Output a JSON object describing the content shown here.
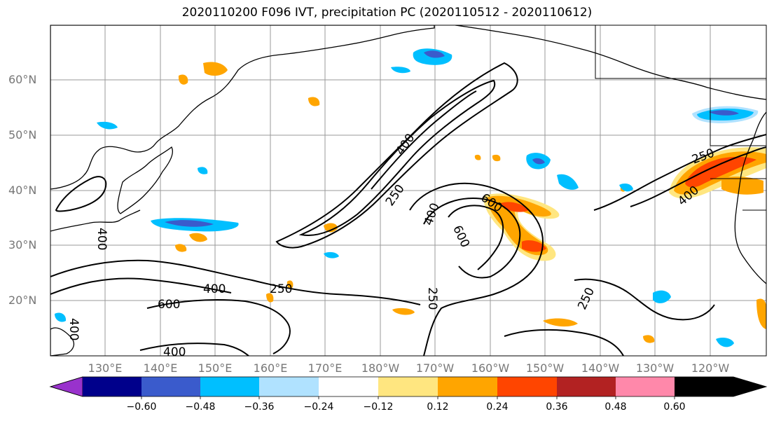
{
  "title": "2020110200 F096 IVT, precipitation PC (2020110512 - 2020110612)",
  "lat_labels": [
    "60°N",
    "50°N",
    "40°N",
    "30°N",
    "20°N"
  ],
  "lon_labels": [
    "130°E",
    "140°E",
    "150°E",
    "160°E",
    "170°E",
    "180°W",
    "170°W",
    "160°W",
    "150°W",
    "140°W",
    "130°W",
    "120°W"
  ],
  "contour_labels": [
    "400",
    "250",
    "400",
    "600",
    "250",
    "250",
    "600",
    "400",
    "250",
    "400",
    "250",
    "400",
    "600",
    "400",
    "400"
  ],
  "colorbar": {
    "ticks": [
      "−0.60",
      "−0.48",
      "−0.36",
      "−0.24",
      "−0.12",
      "0.12",
      "0.24",
      "0.36",
      "0.48",
      "0.60"
    ],
    "colors": [
      "#9932CC",
      "#00008B",
      "#3A5BCC",
      "#00BFFF",
      "#B0E2FF",
      "#FFFFFF",
      "#FFE680",
      "#FFA500",
      "#FF4500",
      "#B22222",
      "#FF88AA"
    ]
  },
  "palette": {
    "land": "#FFFFFF",
    "coast": "#000000",
    "grid": "#999999",
    "contour": "#000000",
    "blue_dark": "#3A5BCC",
    "blue_mid": "#00BFFF",
    "blue_light": "#B0E2FF",
    "orange_light": "#FFE680",
    "orange": "#FFA500",
    "red": "#FF4500"
  }
}
